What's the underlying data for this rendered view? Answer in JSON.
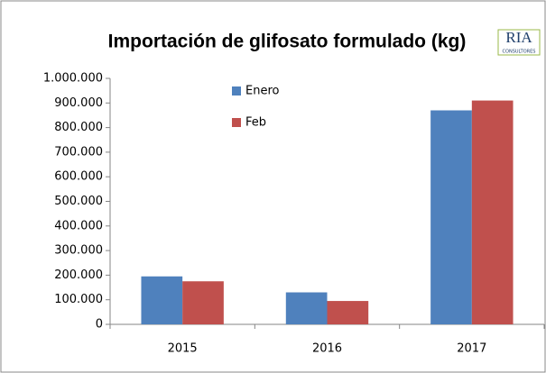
{
  "chart_data": {
    "type": "bar",
    "title": "Importación de glifosato formulado (kg)",
    "logo": "RIA",
    "logo_subtitle": "CONSULTORES",
    "categories": [
      "2015",
      "2016",
      "2017"
    ],
    "series": [
      {
        "name": "Enero",
        "color": "#4f81bd",
        "values": [
          195000,
          130000,
          870000
        ]
      },
      {
        "name": "Feb",
        "color": "#c0504d",
        "values": [
          175000,
          95000,
          910000
        ]
      }
    ],
    "ylim": [
      0,
      1000000
    ],
    "yticks": [
      0,
      {
        "value": 100000,
        "label": "100.000"
      },
      {
        "value": 200000,
        "label": "200.000"
      },
      {
        "value": 300000,
        "label": "300.000"
      },
      {
        "value": 400000,
        "label": "400.000"
      },
      {
        "value": 500000,
        "label": "500.000"
      },
      {
        "value": 600000,
        "label": "600.000"
      },
      {
        "value": 700000,
        "label": "700.000"
      },
      {
        "value": 800000,
        "label": "800.000"
      },
      {
        "value": 900000,
        "label": "900.000"
      },
      {
        "value": 1000000,
        "label": "1.000.000"
      }
    ],
    "grid": false,
    "legend": "top"
  }
}
